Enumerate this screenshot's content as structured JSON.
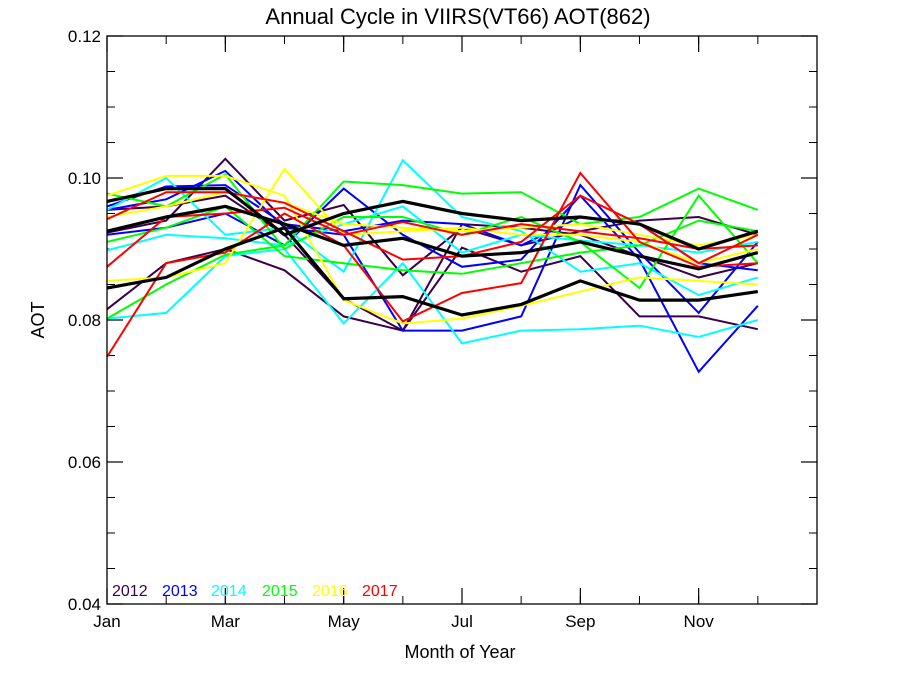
{
  "chart_data": {
    "type": "line",
    "title": "Annual Cycle in VIIRS(VT66) AOT(862)",
    "xlabel": "Month of Year",
    "ylabel": "AOT",
    "xlim": [
      1,
      13
    ],
    "ylim": [
      0.04,
      0.12
    ],
    "x_ticks": [
      {
        "value": 1,
        "label": "Jan"
      },
      {
        "value": 3,
        "label": "Mar"
      },
      {
        "value": 5,
        "label": "May"
      },
      {
        "value": 7,
        "label": "Jul"
      },
      {
        "value": 9,
        "label": "Sep"
      },
      {
        "value": 11,
        "label": "Nov"
      }
    ],
    "y_ticks": [
      {
        "value": 0.04,
        "label": "0.04"
      },
      {
        "value": 0.06,
        "label": "0.06"
      },
      {
        "value": 0.08,
        "label": "0.08"
      },
      {
        "value": 0.1,
        "label": "0.10"
      },
      {
        "value": 0.12,
        "label": "0.12"
      }
    ],
    "y_minor_step": 0.005,
    "x_minor_step": 1,
    "legend": {
      "placement": "bottom-left",
      "entries": [
        {
          "label": "2012",
          "color": "#3a004a"
        },
        {
          "label": "2013",
          "color": "#0000ff"
        },
        {
          "label": "2014",
          "color": "#00ffff"
        },
        {
          "label": "2015",
          "color": "#00ff00"
        },
        {
          "label": "2016",
          "color": "#ffff00"
        },
        {
          "label": "2017",
          "color": "#ff0000"
        }
      ]
    },
    "x": [
      1,
      2,
      3,
      4,
      5,
      6,
      7,
      8,
      9,
      10,
      11,
      12
    ],
    "series": [
      {
        "year": "2012",
        "color": "#3a004a",
        "width": 2,
        "values": [
          0.0815,
          0.088,
          0.09,
          0.087,
          0.0805,
          0.0785,
          0.0902,
          0.0868,
          0.089,
          0.0805,
          0.0805,
          0.0787
        ]
      },
      {
        "year": "2012",
        "color": "#3a004a",
        "width": 2,
        "values": [
          0.0923,
          0.094,
          0.1027,
          0.094,
          0.0962,
          0.0863,
          0.093,
          0.0905,
          0.0925,
          0.094,
          0.0945,
          0.092
        ]
      },
      {
        "year": "2012",
        "color": "#3a004a",
        "width": 2,
        "values": [
          0.0955,
          0.096,
          0.0975,
          0.092,
          0.083,
          0.0785,
          0.0935,
          0.093,
          0.092,
          0.089,
          0.086,
          0.088
        ]
      },
      {
        "year": "2013",
        "color": "#0000ff",
        "width": 2,
        "values": [
          0.092,
          0.093,
          0.095,
          0.0905,
          0.0985,
          0.092,
          0.0875,
          0.0885,
          0.0975,
          0.0885,
          0.0727,
          0.082
        ]
      },
      {
        "year": "2013",
        "color": "#0000ff",
        "width": 2,
        "values": [
          0.0955,
          0.097,
          0.101,
          0.093,
          0.092,
          0.0785,
          0.0785,
          0.0805,
          0.099,
          0.0895,
          0.081,
          0.091
        ]
      },
      {
        "year": "2013",
        "color": "#0000ff",
        "width": 2,
        "values": [
          0.096,
          0.0988,
          0.099,
          0.0935,
          0.0925,
          0.094,
          0.0935,
          0.0905,
          0.0945,
          0.0935,
          0.088,
          0.087
        ]
      },
      {
        "year": "2014",
        "color": "#00ffff",
        "width": 2,
        "values": [
          0.0802,
          0.081,
          0.089,
          0.09,
          0.0795,
          0.088,
          0.0767,
          0.0785,
          0.0787,
          0.0792,
          0.0776,
          0.08
        ]
      },
      {
        "year": "2014",
        "color": "#00ffff",
        "width": 2,
        "values": [
          0.0955,
          0.1,
          0.092,
          0.093,
          0.0868,
          0.1025,
          0.0945,
          0.0925,
          0.0868,
          0.088,
          0.0835,
          0.086
        ]
      },
      {
        "year": "2014",
        "color": "#00ffff",
        "width": 2,
        "values": [
          0.0898,
          0.092,
          0.0915,
          0.0905,
          0.0935,
          0.096,
          0.0895,
          0.092,
          0.0912,
          0.0905,
          0.0895,
          0.091
        ]
      },
      {
        "year": "2015",
        "color": "#00ff00",
        "width": 2,
        "values": [
          0.0802,
          0.085,
          0.0892,
          0.0905,
          0.0995,
          0.099,
          0.0978,
          0.098,
          0.0935,
          0.0945,
          0.0985,
          0.0955
        ]
      },
      {
        "year": "2015",
        "color": "#00ff00",
        "width": 2,
        "values": [
          0.0978,
          0.096,
          0.1005,
          0.09,
          0.0945,
          0.0945,
          0.092,
          0.0945,
          0.091,
          0.0845,
          0.0975,
          0.088
        ]
      },
      {
        "year": "2015",
        "color": "#00ff00",
        "width": 2,
        "values": [
          0.091,
          0.093,
          0.096,
          0.089,
          0.088,
          0.087,
          0.0865,
          0.088,
          0.0895,
          0.0905,
          0.094,
          0.0925
        ]
      },
      {
        "year": "2016",
        "color": "#ffff00",
        "width": 2,
        "values": [
          0.0975,
          0.1003,
          0.1003,
          0.0975,
          0.0828,
          0.0795,
          0.0802,
          0.082,
          0.084,
          0.086,
          0.0855,
          0.085
        ]
      },
      {
        "year": "2016",
        "color": "#ffff00",
        "width": 2,
        "values": [
          0.0855,
          0.086,
          0.088,
          0.1013,
          0.092,
          0.0925,
          0.093,
          0.092,
          0.092,
          0.091,
          0.088,
          0.09
        ]
      },
      {
        "year": "2016",
        "color": "#ffff00",
        "width": 2,
        "values": [
          0.0945,
          0.096,
          0.098,
          0.0965,
          0.0935,
          0.093,
          0.0925,
          0.093,
          0.0935,
          0.092,
          0.0905,
          0.092
        ]
      },
      {
        "year": "2017",
        "color": "#ff0000",
        "width": 2,
        "values": [
          0.0748,
          0.088,
          0.0895,
          0.095,
          0.0905,
          0.0798,
          0.0838,
          0.0852,
          0.1007,
          0.091,
          0.0875,
          0.088
        ]
      },
      {
        "year": "2017",
        "color": "#ff0000",
        "width": 2,
        "values": [
          0.0942,
          0.098,
          0.098,
          0.0965,
          0.0925,
          0.0885,
          0.089,
          0.091,
          0.0975,
          0.0935,
          0.088,
          0.092
        ]
      },
      {
        "year": "2017",
        "color": "#ff0000",
        "width": 2,
        "values": [
          0.0875,
          0.0945,
          0.095,
          0.0958,
          0.092,
          0.0938,
          0.092,
          0.0935,
          0.0925,
          0.0915,
          0.09,
          0.0905
        ]
      },
      {
        "year": "",
        "color": "#000000",
        "width": 3.2,
        "values": [
          0.0967,
          0.0985,
          0.0985,
          0.092,
          0.095,
          0.0967,
          0.095,
          0.094,
          0.0945,
          0.0935,
          0.09,
          0.0925
        ]
      },
      {
        "year": "",
        "color": "#000000",
        "width": 3.2,
        "values": [
          0.0925,
          0.0945,
          0.096,
          0.0935,
          0.0905,
          0.0915,
          0.089,
          0.0895,
          0.091,
          0.089,
          0.0872,
          0.0895
        ]
      },
      {
        "year": "",
        "color": "#000000",
        "width": 3.2,
        "values": [
          0.0845,
          0.086,
          0.09,
          0.093,
          0.083,
          0.0833,
          0.0807,
          0.0822,
          0.0855,
          0.0828,
          0.0828,
          0.084
        ]
      }
    ]
  }
}
